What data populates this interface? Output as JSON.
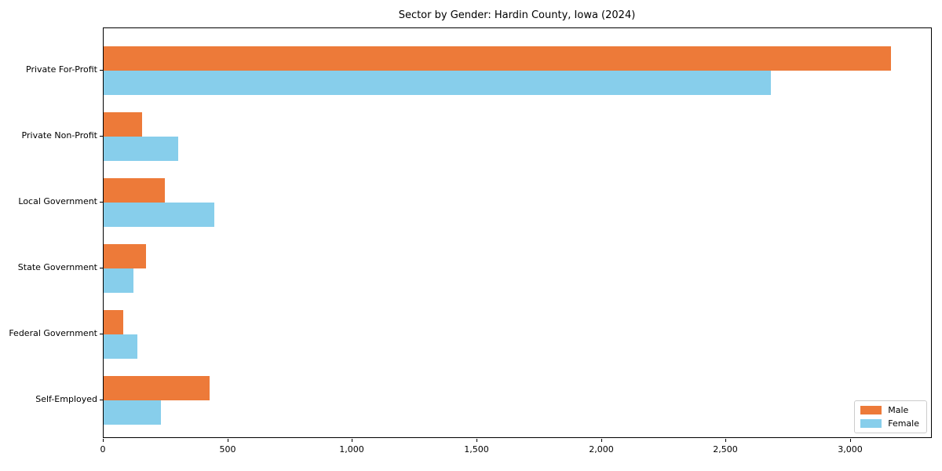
{
  "chart_data": {
    "type": "bar",
    "orientation": "horizontal",
    "title": "Sector by Gender: Hardin County, Iowa (2024)",
    "xlabel": "",
    "ylabel": "",
    "categories": [
      "Private For-Profit",
      "Private Non-Profit",
      "Local Government",
      "State Government",
      "Federal Government",
      "Self-Employed"
    ],
    "series": [
      {
        "name": "Male",
        "color": "#ED7A39",
        "values": [
          3160,
          155,
          245,
          170,
          80,
          425
        ]
      },
      {
        "name": "Female",
        "color": "#87CEEB",
        "values": [
          2680,
          300,
          445,
          120,
          135,
          230
        ]
      }
    ],
    "xlim": [
      0,
      3325
    ],
    "xticks": [
      0,
      500,
      1000,
      1500,
      2000,
      2500,
      3000
    ],
    "xtick_labels": [
      "0",
      "500",
      "1,000",
      "1,500",
      "2,000",
      "2,500",
      "3,000"
    ],
    "grid": false,
    "legend": {
      "position": "lower right",
      "entries": [
        "Male",
        "Female"
      ]
    },
    "colors": {
      "spine": "#000000",
      "text": "#000000",
      "background": "#ffffff",
      "legend_border": "#cccccc"
    }
  }
}
